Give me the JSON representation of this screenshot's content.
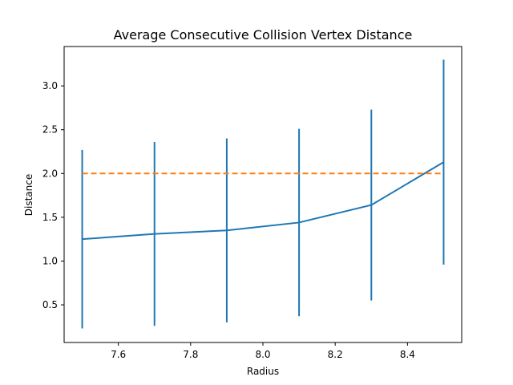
{
  "chart_data": {
    "type": "line",
    "title": "Average Consecutive Collision Vertex Distance",
    "xlabel": "Radius",
    "ylabel": "Distance",
    "xlim": [
      7.45,
      8.55
    ],
    "ylim": [
      0.07,
      3.45
    ],
    "x_ticks": [
      7.6,
      7.8,
      8.0,
      8.2,
      8.4
    ],
    "x_tick_labels": [
      "7.6",
      "7.8",
      "8.0",
      "8.2",
      "8.4"
    ],
    "y_ticks": [
      0.5,
      1.0,
      1.5,
      2.0,
      2.5,
      3.0
    ],
    "y_tick_labels": [
      "0.5",
      "1.0",
      "1.5",
      "2.0",
      "2.5",
      "3.0"
    ],
    "grid": false,
    "series": [
      {
        "x": [
          7.5,
          7.7,
          7.9,
          8.1,
          8.3,
          8.5
        ],
        "y": [
          1.25,
          1.31,
          1.35,
          1.44,
          1.64,
          2.13
        ],
        "error": [
          1.02,
          1.05,
          1.05,
          1.07,
          1.09,
          1.17
        ],
        "color": "#1f77b4",
        "style": "solid"
      },
      {
        "x": [
          7.5,
          8.5
        ],
        "y": [
          2.0,
          2.0
        ],
        "color": "#ff7f0e",
        "style": "dashed"
      }
    ]
  }
}
